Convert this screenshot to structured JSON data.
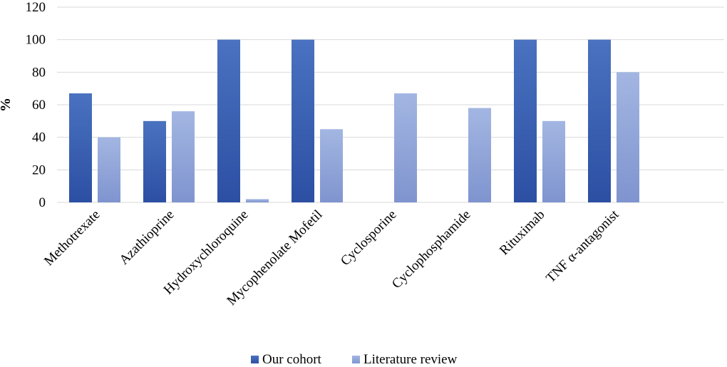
{
  "chart_data": {
    "type": "bar",
    "title": "",
    "xlabel": "",
    "ylabel": "%",
    "ylim": [
      0,
      120
    ],
    "yticks": [
      0,
      20,
      40,
      60,
      80,
      100,
      120
    ],
    "grid": true,
    "legend": "bottom",
    "categories": [
      "Methotrexate",
      "Azathioprine",
      "Hydroxychloroquine",
      "Mycophenolate Mofetil",
      "Cyclosporine",
      "Cyclophosphamide",
      "Rituximab",
      "TNF α-antagonist"
    ],
    "series": [
      {
        "name": "Our cohort",
        "values": [
          67,
          50,
          100,
          100,
          0,
          0,
          100,
          100
        ],
        "color_top": "#4a72c0",
        "color_bottom": "#2c4fa3"
      },
      {
        "name": "Literature review",
        "values": [
          40,
          56,
          2,
          45,
          67,
          58,
          50,
          80
        ],
        "color_top": "#a3b6e2",
        "color_bottom": "#7f94cf"
      }
    ]
  }
}
